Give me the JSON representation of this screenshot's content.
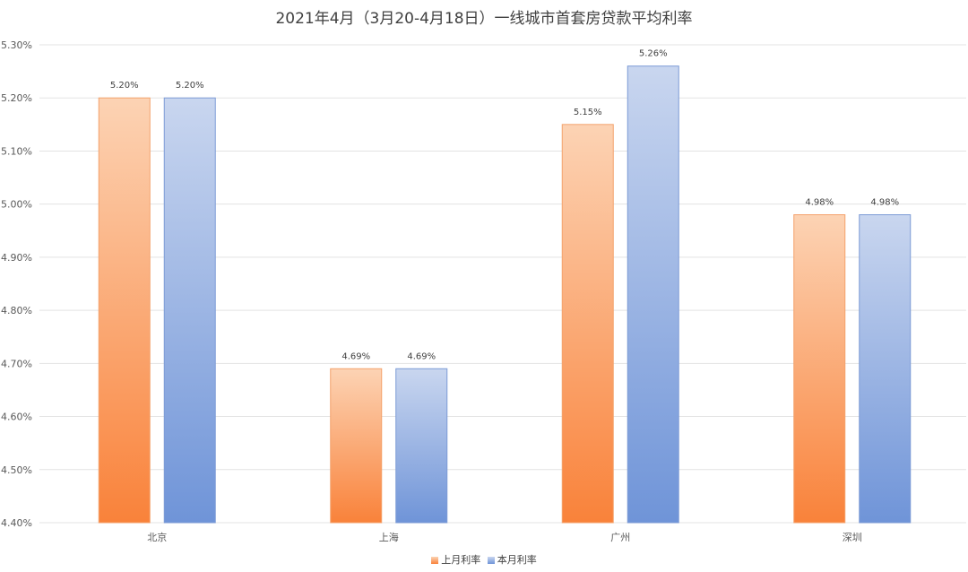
{
  "chart_data": {
    "type": "bar",
    "title": "2021年4月（3月20-4月18日）一线城市首套房贷款平均利率",
    "categories": [
      "北京",
      "上海",
      "广州",
      "深圳"
    ],
    "series": [
      {
        "name": "上月利率",
        "values": [
          5.2,
          4.69,
          5.15,
          4.98
        ],
        "labels": [
          "5.20%",
          "4.69%",
          "5.15%",
          "4.98%"
        ],
        "color_top": "#fcd3b4",
        "color_bottom": "#f9823a",
        "stroke": "#f4a26c"
      },
      {
        "name": "本月利率",
        "values": [
          5.2,
          4.69,
          5.26,
          4.98
        ],
        "labels": [
          "5.20%",
          "4.69%",
          "5.26%",
          "4.98%"
        ],
        "color_top": "#c9d6ef",
        "color_bottom": "#6f94d8",
        "stroke": "#7d9bd6"
      }
    ],
    "ylim": [
      4.4,
      5.3
    ],
    "yticks": [
      "4.40%",
      "4.50%",
      "4.60%",
      "4.70%",
      "4.80%",
      "4.90%",
      "5.00%",
      "5.10%",
      "5.20%",
      "5.30%"
    ],
    "grid": true,
    "legend_position": "bottom"
  }
}
